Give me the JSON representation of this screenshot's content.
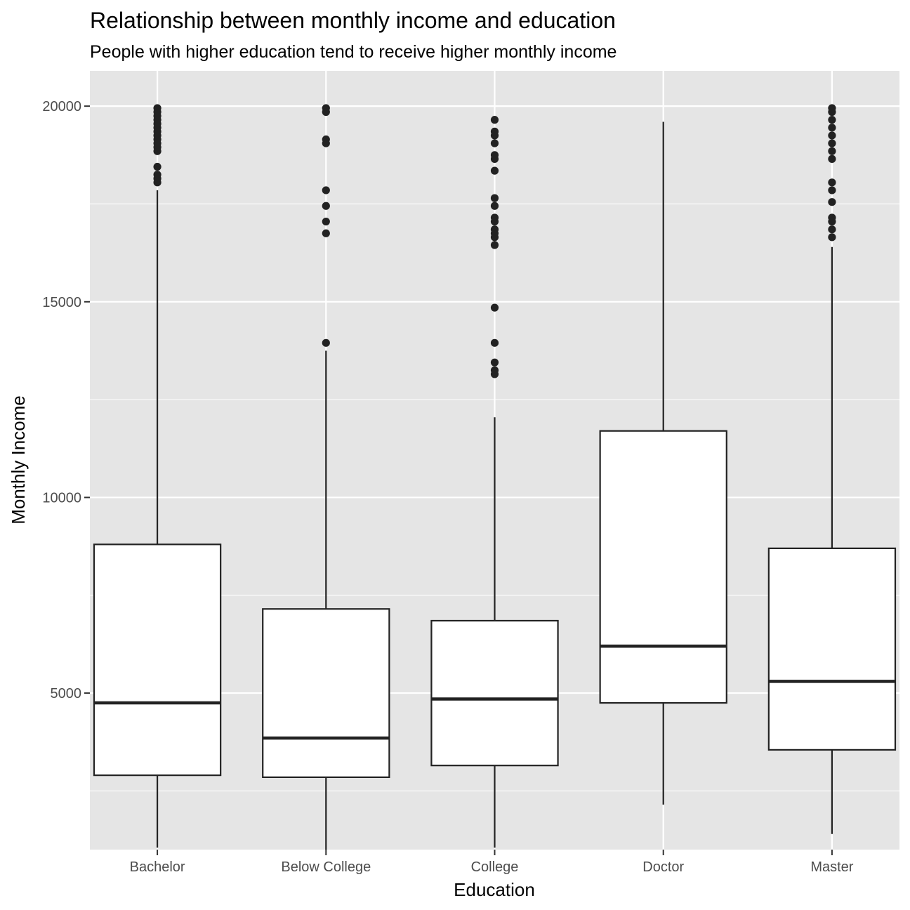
{
  "chart_data": {
    "type": "boxplot",
    "title": "Relationship between monthly income and education",
    "subtitle": "People with higher education tend to receive higher monthly income",
    "xlabel": "Education",
    "ylabel": "Monthly Income",
    "ylim": [
      1000,
      20900
    ],
    "yticks": [
      5000,
      10000,
      15000,
      20000
    ],
    "y_minor_ticks": [
      2500,
      7500,
      12500,
      17500
    ],
    "grid": true,
    "legend": "none",
    "colors": {
      "panel": "#e5e5e5",
      "grid": "#ffffff",
      "box_fill": "#ffffff",
      "stroke": "#222222",
      "tick_text": "#4d4d4d"
    },
    "categories": [
      "Bachelor",
      "Below College",
      "College",
      "Doctor",
      "Master"
    ],
    "boxes": [
      {
        "category": "Bachelor",
        "whisker_low": 1050,
        "q1": 2900,
        "median": 4750,
        "q3": 8800,
        "whisker_high": 17850,
        "outliers": [
          18050,
          18150,
          18250,
          18450,
          18850,
          18950,
          19050,
          19150,
          19250,
          19350,
          19450,
          19550,
          19650,
          19750,
          19850,
          19950
        ]
      },
      {
        "category": "Below College",
        "whisker_low": 1000,
        "q1": 2850,
        "median": 3850,
        "q3": 7150,
        "whisker_high": 13750,
        "outliers": [
          13950,
          16750,
          17050,
          17450,
          17850,
          19050,
          19150,
          19850,
          19950
        ]
      },
      {
        "category": "College",
        "whisker_low": 1050,
        "q1": 3150,
        "median": 4850,
        "q3": 6850,
        "whisker_high": 12050,
        "outliers": [
          13150,
          13250,
          13450,
          13950,
          14850,
          16450,
          16650,
          16750,
          16850,
          17050,
          17150,
          17450,
          17650,
          18350,
          18650,
          18750,
          19050,
          19250,
          19350,
          19650
        ]
      },
      {
        "category": "Doctor",
        "whisker_low": 2150,
        "q1": 4750,
        "median": 6200,
        "q3": 11700,
        "whisker_high": 19600,
        "outliers": []
      },
      {
        "category": "Master",
        "whisker_low": 1400,
        "q1": 3550,
        "median": 5300,
        "q3": 8700,
        "whisker_high": 16400,
        "outliers": [
          16650,
          16850,
          17050,
          17150,
          17550,
          17850,
          18050,
          18650,
          18850,
          19050,
          19250,
          19450,
          19650,
          19850,
          19950
        ]
      }
    ]
  }
}
